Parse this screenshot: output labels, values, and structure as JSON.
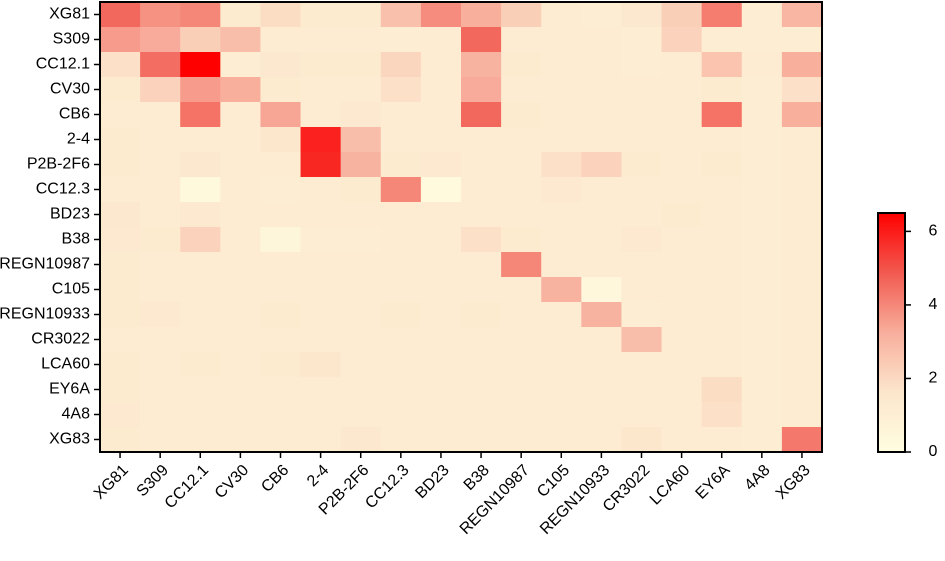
{
  "chart_data": {
    "type": "heatmap",
    "x_categories": [
      "XG81",
      "S309",
      "CC12.1",
      "CV30",
      "CB6",
      "2-4",
      "P2B-2F6",
      "CC12.3",
      "BD23",
      "B38",
      "REGN10987",
      "C105",
      "REGN10933",
      "CR3022",
      "LCA60",
      "EY6A",
      "4A8",
      "XG83"
    ],
    "y_categories": [
      "XG81",
      "S309",
      "CC12.1",
      "CV30",
      "CB6",
      "2-4",
      "P2B-2F6",
      "CC12.3",
      "BD23",
      "B38",
      "REGN10987",
      "C105",
      "REGN10933",
      "CR3022",
      "LCA60",
      "EY6A",
      "4A8",
      "XG83"
    ],
    "values": [
      [
        4.6,
        3.8,
        4.0,
        1.3,
        1.9,
        1.3,
        1.3,
        2.7,
        3.9,
        3.2,
        2.3,
        1.2,
        1.1,
        1.5,
        2.3,
        4.2,
        1.1,
        3.0
      ],
      [
        3.6,
        3.3,
        2.3,
        2.8,
        1.2,
        1.2,
        1.2,
        1.1,
        1.2,
        4.6,
        1.2,
        1.2,
        1.2,
        1.1,
        2.2,
        1.1,
        1.1,
        1.1
      ],
      [
        1.8,
        4.5,
        6.5,
        1.1,
        1.5,
        1.3,
        1.3,
        2.1,
        1.2,
        3.1,
        1.3,
        1.2,
        1.2,
        1.1,
        1.2,
        2.6,
        1.2,
        3.2
      ],
      [
        1.3,
        2.2,
        3.6,
        3.2,
        1.3,
        1.2,
        1.2,
        1.8,
        1.2,
        3.3,
        1.2,
        1.2,
        1.2,
        1.2,
        1.2,
        1.3,
        1.1,
        1.8
      ],
      [
        1.2,
        1.2,
        4.4,
        1.2,
        3.4,
        1.2,
        1.4,
        1.2,
        1.2,
        4.6,
        1.3,
        1.2,
        1.2,
        1.2,
        1.2,
        4.4,
        1.1,
        3.2
      ],
      [
        1.3,
        1.2,
        1.2,
        1.2,
        1.6,
        5.9,
        2.8,
        1.2,
        1.2,
        1.2,
        1.2,
        1.2,
        1.2,
        1.2,
        1.2,
        1.2,
        1.1,
        1.2
      ],
      [
        1.3,
        1.2,
        1.5,
        1.2,
        1.2,
        5.8,
        3.1,
        1.3,
        1.4,
        1.2,
        1.2,
        1.8,
        2.2,
        1.3,
        1.2,
        1.3,
        1.1,
        1.2
      ],
      [
        1.2,
        1.2,
        0.3,
        1.2,
        1.1,
        1.2,
        1.3,
        4.0,
        0.2,
        1.2,
        1.2,
        1.4,
        1.2,
        1.2,
        1.2,
        1.2,
        1.1,
        1.2
      ],
      [
        1.5,
        1.2,
        1.4,
        1.2,
        1.2,
        1.2,
        1.2,
        1.2,
        1.2,
        1.2,
        1.2,
        1.2,
        1.2,
        1.2,
        1.3,
        1.2,
        1.1,
        1.2
      ],
      [
        1.4,
        1.3,
        2.2,
        1.2,
        0.5,
        1.1,
        1.1,
        1.2,
        1.2,
        1.8,
        1.3,
        1.2,
        1.2,
        1.4,
        1.2,
        1.2,
        1.1,
        1.2
      ],
      [
        1.3,
        1.2,
        1.2,
        1.2,
        1.2,
        1.2,
        1.2,
        1.2,
        1.2,
        1.2,
        4.0,
        1.2,
        1.2,
        1.2,
        1.2,
        1.2,
        1.1,
        1.2
      ],
      [
        1.3,
        1.2,
        1.2,
        1.2,
        1.2,
        1.2,
        1.2,
        1.2,
        1.2,
        1.2,
        1.2,
        3.1,
        0.4,
        1.2,
        1.2,
        1.2,
        1.1,
        1.2
      ],
      [
        1.3,
        1.4,
        1.2,
        1.2,
        1.3,
        1.2,
        1.2,
        1.3,
        1.2,
        1.3,
        1.2,
        1.2,
        3.1,
        1.1,
        1.2,
        1.2,
        1.1,
        1.2
      ],
      [
        1.2,
        1.2,
        1.2,
        1.2,
        1.2,
        1.2,
        1.2,
        1.2,
        1.2,
        1.2,
        1.2,
        1.2,
        1.2,
        2.8,
        1.2,
        1.2,
        1.1,
        1.2
      ],
      [
        1.3,
        1.2,
        1.3,
        1.2,
        1.3,
        1.6,
        1.2,
        1.2,
        1.2,
        1.2,
        1.2,
        1.2,
        1.2,
        1.2,
        1.2,
        1.2,
        1.1,
        1.2
      ],
      [
        1.3,
        1.2,
        1.2,
        1.2,
        1.2,
        1.2,
        1.2,
        1.2,
        1.2,
        1.2,
        1.2,
        1.2,
        1.2,
        1.2,
        1.2,
        1.9,
        1.1,
        1.2
      ],
      [
        1.4,
        1.2,
        1.2,
        1.2,
        1.2,
        1.2,
        1.2,
        1.2,
        1.2,
        1.2,
        1.2,
        1.2,
        1.2,
        1.2,
        1.2,
        1.8,
        1.1,
        1.2
      ],
      [
        1.3,
        1.2,
        1.2,
        1.2,
        1.2,
        1.2,
        1.5,
        1.2,
        1.2,
        1.2,
        1.2,
        1.2,
        1.2,
        1.6,
        1.2,
        1.2,
        1.1,
        4.3
      ]
    ],
    "zlim": [
      0,
      6.5
    ],
    "zticks": [
      0,
      2,
      4,
      6
    ],
    "colorscale": [
      "#fffde0",
      "#fce6cc",
      "#f8ae9c",
      "#f25a50",
      "#ff0000"
    ]
  }
}
